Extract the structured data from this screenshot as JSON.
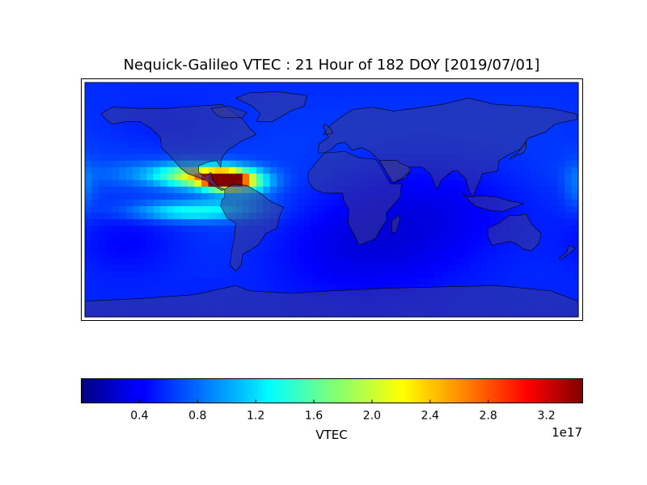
{
  "chart_data": {
    "type": "heatmap",
    "title": "Nequick-Galileo VTEC : 21 Hour of 182 DOY [2019/07/01]",
    "map": {
      "projection": "equirectangular",
      "lon_range": [
        -180,
        180
      ],
      "lat_range": [
        -90,
        90
      ]
    },
    "colorbar": {
      "label": "VTEC",
      "colormap": "jet",
      "range": [
        0.0,
        3.45
      ],
      "ticks": [
        "0.4",
        "0.8",
        "1.2",
        "1.6",
        "2.0",
        "2.4",
        "2.8",
        "3.2"
      ],
      "tick_values": [
        0.4,
        0.8,
        1.2,
        1.6,
        2.0,
        2.4,
        2.8,
        3.2
      ],
      "offset_text": "1e17",
      "location": "bottom"
    },
    "grid_resolution_deg": 5,
    "background_level": 0.55,
    "peaks": [
      {
        "lon": -78,
        "lat": 15,
        "value": 3.35,
        "sigma_lon": 10,
        "sigma_lat": 4
      },
      {
        "lon": -92,
        "lat": 18,
        "value": 2.0,
        "sigma_lon": 22,
        "sigma_lat": 6
      },
      {
        "lon": -65,
        "lat": 13,
        "value": 1.4,
        "sigma_lon": 14,
        "sigma_lat": 6
      },
      {
        "lon": -120,
        "lat": 20,
        "value": 0.8,
        "sigma_lon": 35,
        "sigma_lat": 6
      },
      {
        "lon": -105,
        "lat": -9,
        "value": 1.25,
        "sigma_lon": 28,
        "sigma_lat": 5
      },
      {
        "lon": -70,
        "lat": -2,
        "value": 0.8,
        "sigma_lon": 18,
        "sigma_lat": 8
      },
      {
        "lon": -120,
        "lat": 55,
        "value": 0.45,
        "sigma_lon": 40,
        "sigma_lat": 15
      },
      {
        "lon": 178,
        "lat": 10,
        "value": 0.75,
        "sigma_lon": 6,
        "sigma_lat": 12
      },
      {
        "lon": -150,
        "lat": -30,
        "value": 0.35,
        "sigma_lon": 30,
        "sigma_lat": 20
      }
    ],
    "depressions": [
      {
        "lon": 70,
        "lat": -5,
        "value": 0.45,
        "sigma_lon": 60,
        "sigma_lat": 30
      },
      {
        "lon": 20,
        "lat": -40,
        "value": 0.35,
        "sigma_lon": 50,
        "sigma_lat": 25
      }
    ]
  },
  "land": {
    "color": "#3a3a8c",
    "opacity": 0.55
  }
}
